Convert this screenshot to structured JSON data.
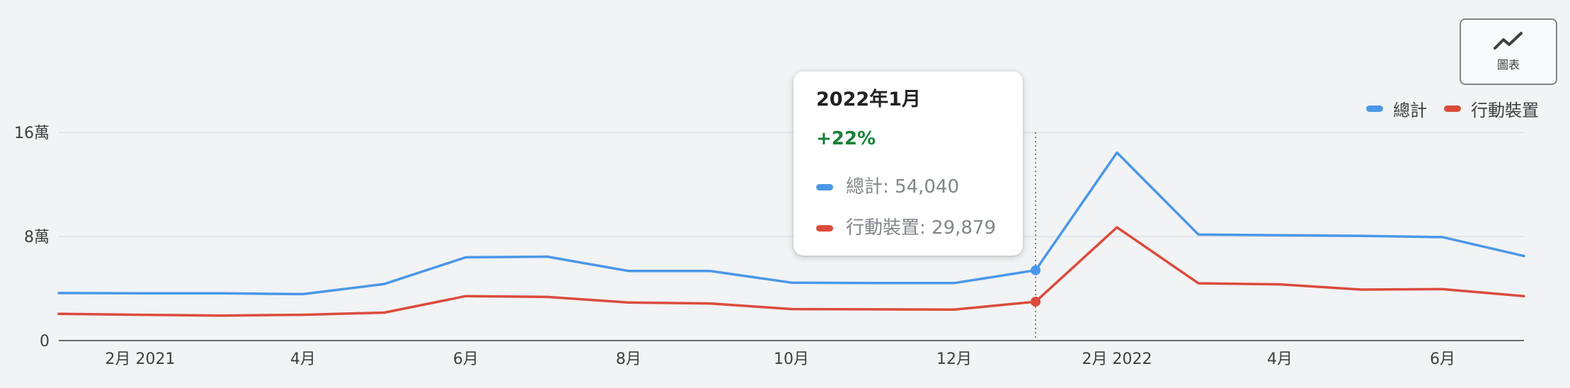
{
  "chart_type_button": {
    "label": "圖表",
    "icon": "line-chart-icon"
  },
  "legend": [
    {
      "label": "總計",
      "color": "#4a97e8"
    },
    {
      "label": "行動裝置",
      "color": "#db4b3c"
    }
  ],
  "tooltip": {
    "title": "2022年1月",
    "change": "+22%",
    "rows": [
      {
        "label": "總計: 54,040",
        "color": "#4a97e8"
      },
      {
        "label": "行動裝置: 29,879",
        "color": "#db4b3c"
      }
    ]
  },
  "chart_data": {
    "type": "line",
    "x": [
      "2021-01",
      "2021-02",
      "2021-03",
      "2021-04",
      "2021-05",
      "2021-06",
      "2021-07",
      "2021-08",
      "2021-09",
      "2021-10",
      "2021-11",
      "2021-12",
      "2022-01",
      "2022-02",
      "2022-03",
      "2022-04",
      "2022-05",
      "2022-06",
      "2022-07"
    ],
    "x_tick_labels": [
      "2月 2021",
      "4月",
      "6月",
      "8月",
      "10月",
      "12月",
      "2月 2022",
      "4月",
      "6月"
    ],
    "x_tick_positions": [
      "2021-02",
      "2021-04",
      "2021-06",
      "2021-08",
      "2021-10",
      "2021-12",
      "2022-02",
      "2022-04",
      "2022-06"
    ],
    "y_tick_labels": [
      "0",
      "8萬",
      "16萬"
    ],
    "y_tick_values": [
      0,
      80000,
      160000
    ],
    "ylim": [
      0,
      160000
    ],
    "grid": true,
    "legend_position": "top-right",
    "highlight_x": "2022-01",
    "series": [
      {
        "name": "總計",
        "color": "#4a97e8",
        "values": [
          36500,
          36300,
          36300,
          35700,
          43500,
          64000,
          64500,
          53500,
          53500,
          44500,
          44200,
          44200,
          54040,
          144500,
          81500,
          81000,
          80500,
          79500,
          65000
        ]
      },
      {
        "name": "行動裝置",
        "color": "#db4b3c",
        "values": [
          20500,
          19800,
          19200,
          19800,
          21500,
          34200,
          33500,
          29200,
          28500,
          24200,
          24000,
          23800,
          29879,
          87000,
          44000,
          43200,
          39200,
          39500,
          34200
        ]
      }
    ]
  }
}
